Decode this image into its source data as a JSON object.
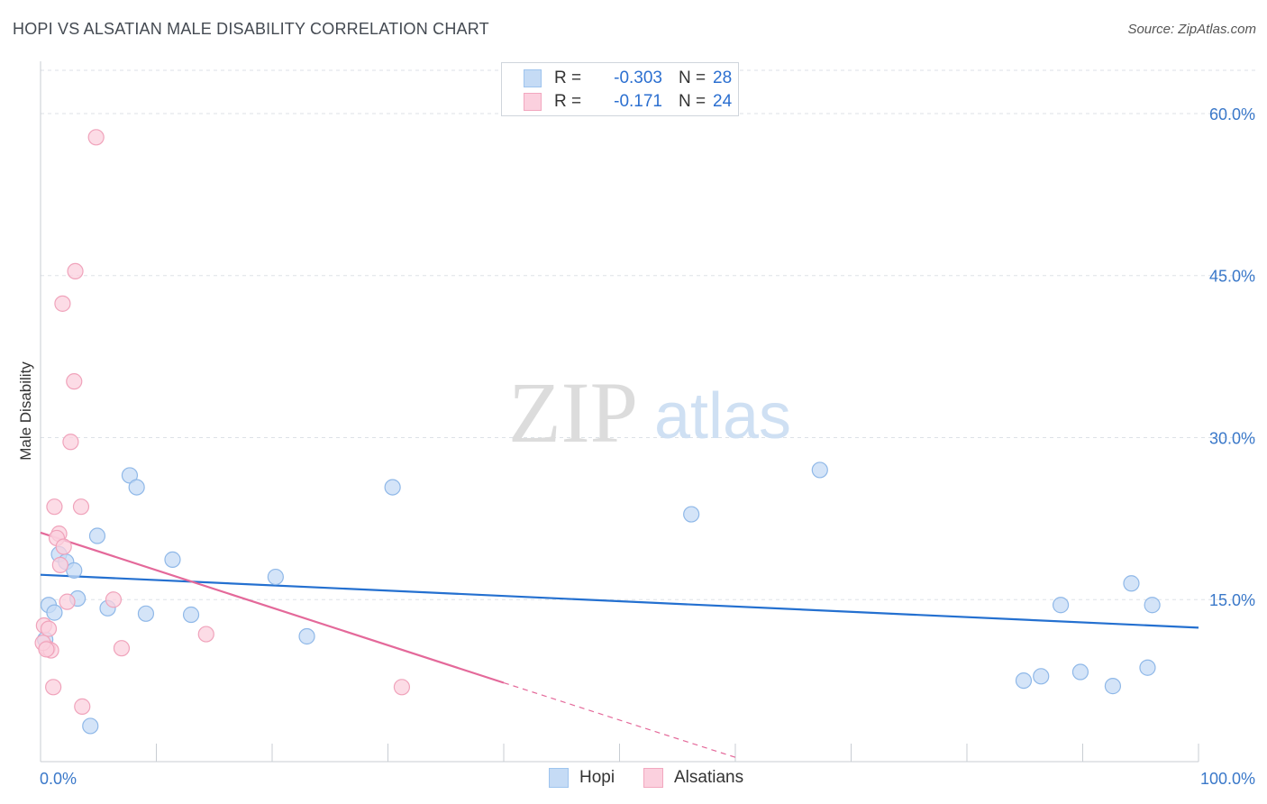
{
  "title": "HOPI VS ALSATIAN MALE DISABILITY CORRELATION CHART",
  "source": "Source: ZipAtlas.com",
  "watermark": {
    "zip": "ZIP",
    "atlas": "atlas"
  },
  "legend": {
    "rows": [
      {
        "r_label": "R =",
        "r_value": "-0.303",
        "n_label": "N =",
        "n_value": "28",
        "color": "#9ec4ee",
        "fill": "#c5dbf5"
      },
      {
        "r_label": "R =",
        "r_value": "-0.171",
        "n_label": "N =",
        "n_value": "24",
        "color": "#f2a7bf",
        "fill": "#fbd0de"
      }
    ]
  },
  "bottom_legend": [
    {
      "label": "Hopi",
      "color": "#9ec4ee",
      "fill": "#c5dbf5"
    },
    {
      "label": "Alsatians",
      "color": "#f2a7bf",
      "fill": "#fbd0de"
    }
  ],
  "colors": {
    "hopi_line": "#2470d0",
    "alsatian_line": "#e4699a",
    "axis_text": "#3a78c9",
    "grid": "#dde2e7"
  },
  "chart_data": {
    "type": "scatter",
    "title": "HOPI VS ALSATIAN MALE DISABILITY CORRELATION CHART",
    "xlabel": "",
    "ylabel": "Male Disability",
    "xlim": [
      0,
      100
    ],
    "ylim": [
      0,
      64
    ],
    "x_tick_labels": [
      "0.0%",
      "100.0%"
    ],
    "y_ticks": [
      15,
      30,
      45,
      60
    ],
    "y_tick_labels": [
      "15.0%",
      "30.0%",
      "45.0%",
      "60.0%"
    ],
    "grid": true,
    "series": [
      {
        "name": "Hopi",
        "r": -0.303,
        "n": 28,
        "points": [
          {
            "x": 0.7,
            "y": 14.5
          },
          {
            "x": 1.2,
            "y": 13.8
          },
          {
            "x": 1.6,
            "y": 19.2
          },
          {
            "x": 2.2,
            "y": 18.5
          },
          {
            "x": 2.9,
            "y": 17.7
          },
          {
            "x": 3.2,
            "y": 15.1
          },
          {
            "x": 4.3,
            "y": 3.3
          },
          {
            "x": 4.9,
            "y": 20.9
          },
          {
            "x": 5.8,
            "y": 14.2
          },
          {
            "x": 7.7,
            "y": 26.5
          },
          {
            "x": 8.3,
            "y": 25.4
          },
          {
            "x": 9.1,
            "y": 13.7
          },
          {
            "x": 11.4,
            "y": 18.7
          },
          {
            "x": 13.0,
            "y": 13.6
          },
          {
            "x": 20.3,
            "y": 17.1
          },
          {
            "x": 23.0,
            "y": 11.6
          },
          {
            "x": 30.4,
            "y": 25.4
          },
          {
            "x": 56.2,
            "y": 22.9
          },
          {
            "x": 67.3,
            "y": 27.0
          },
          {
            "x": 84.9,
            "y": 7.5
          },
          {
            "x": 86.4,
            "y": 7.9
          },
          {
            "x": 88.1,
            "y": 14.5
          },
          {
            "x": 89.8,
            "y": 8.3
          },
          {
            "x": 92.6,
            "y": 7.0
          },
          {
            "x": 94.2,
            "y": 16.5
          },
          {
            "x": 95.6,
            "y": 8.7
          },
          {
            "x": 96.0,
            "y": 14.5
          },
          {
            "x": 0.4,
            "y": 11.3
          }
        ],
        "trend": {
          "x1": 0,
          "y1": 17.3,
          "x2": 100,
          "y2": 12.4
        }
      },
      {
        "name": "Alsatians",
        "r": -0.171,
        "n": 24,
        "points": [
          {
            "x": 4.8,
            "y": 57.8
          },
          {
            "x": 3.0,
            "y": 45.4
          },
          {
            "x": 1.9,
            "y": 42.4
          },
          {
            "x": 2.9,
            "y": 35.2
          },
          {
            "x": 2.6,
            "y": 29.6
          },
          {
            "x": 1.2,
            "y": 23.6
          },
          {
            "x": 3.5,
            "y": 23.6
          },
          {
            "x": 1.6,
            "y": 21.1
          },
          {
            "x": 1.4,
            "y": 20.7
          },
          {
            "x": 2.0,
            "y": 19.9
          },
          {
            "x": 1.7,
            "y": 18.2
          },
          {
            "x": 2.3,
            "y": 14.8
          },
          {
            "x": 6.3,
            "y": 15.0
          },
          {
            "x": 0.3,
            "y": 12.6
          },
          {
            "x": 0.7,
            "y": 12.3
          },
          {
            "x": 14.3,
            "y": 11.8
          },
          {
            "x": 0.6,
            "y": 10.5
          },
          {
            "x": 0.9,
            "y": 10.3
          },
          {
            "x": 7.0,
            "y": 10.5
          },
          {
            "x": 1.1,
            "y": 6.9
          },
          {
            "x": 31.2,
            "y": 6.9
          },
          {
            "x": 3.6,
            "y": 5.1
          },
          {
            "x": 0.2,
            "y": 11.0
          },
          {
            "x": 0.5,
            "y": 10.4
          }
        ],
        "trend": {
          "x1": 0,
          "y1": 21.2,
          "x2": 40,
          "y2": 7.3
        },
        "trend_dashed": {
          "x1": 40,
          "y1": 7.3,
          "x2": 60,
          "y2": 0.4
        }
      }
    ]
  }
}
